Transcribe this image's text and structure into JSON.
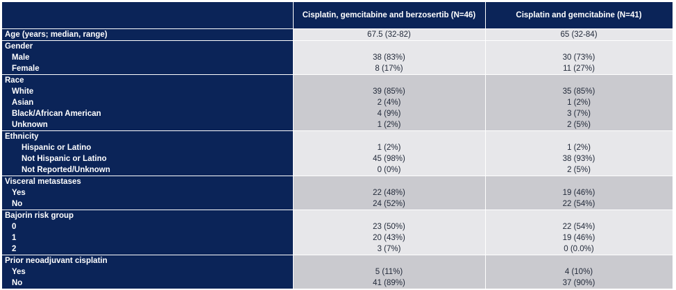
{
  "header": {
    "col0": "",
    "col1": "Cisplatin, gemcitabine and berzosertib (N=46)",
    "col2": "Cisplatin and gemcitabine (N=41)"
  },
  "groups": [
    {
      "shade": "light",
      "rows": [
        {
          "label": "Age (years; median, range)",
          "indent": 0,
          "a": "67.5 (32-82)",
          "b": "65 (32-84)"
        }
      ]
    },
    {
      "shade": "light",
      "rows": [
        {
          "label": "Gender",
          "indent": 0,
          "a": "",
          "b": ""
        },
        {
          "label": "Male",
          "indent": 1,
          "a": "38 (83%)",
          "b": "30 (73%)"
        },
        {
          "label": "Female",
          "indent": 1,
          "a": "8 (17%)",
          "b": "11 (27%)"
        }
      ]
    },
    {
      "shade": "dark",
      "rows": [
        {
          "label": "Race",
          "indent": 0,
          "a": "",
          "b": ""
        },
        {
          "label": "White",
          "indent": 1,
          "a": "39 (85%)",
          "b": "35 (85%)"
        },
        {
          "label": "Asian",
          "indent": 1,
          "a": "2 (4%)",
          "b": "1 (2%)"
        },
        {
          "label": "Black/African American",
          "indent": 1,
          "a": "4 (9%)",
          "b": "3 (7%)"
        },
        {
          "label": "Unknown",
          "indent": 1,
          "a": "1 (2%)",
          "b": "2 (5%)"
        }
      ]
    },
    {
      "shade": "light",
      "rows": [
        {
          "label": "Ethnicity",
          "indent": 0,
          "a": "",
          "b": ""
        },
        {
          "label": "Hispanic or Latino",
          "indent": 2,
          "a": "1 (2%)",
          "b": "1 (2%)"
        },
        {
          "label": "Not Hispanic or Latino",
          "indent": 2,
          "a": "45 (98%)",
          "b": "38 (93%)"
        },
        {
          "label": "Not Reported/Unknown",
          "indent": 2,
          "a": "0 (0%)",
          "b": "2 (5%)"
        }
      ]
    },
    {
      "shade": "dark",
      "rows": [
        {
          "label": "Visceral metastases",
          "indent": 0,
          "a": "",
          "b": ""
        },
        {
          "label": "Yes",
          "indent": 1,
          "a": "22 (48%)",
          "b": "19 (46%)"
        },
        {
          "label": "No",
          "indent": 1,
          "a": "24 (52%)",
          "b": "22 (54%)"
        }
      ]
    },
    {
      "shade": "light",
      "rows": [
        {
          "label": "Bajorin risk group",
          "indent": 0,
          "a": "",
          "b": ""
        },
        {
          "label": "0",
          "indent": 1,
          "a": "23 (50%)",
          "b": "22 (54%)"
        },
        {
          "label": "1",
          "indent": 1,
          "a": "20 (43%)",
          "b": "19 (46%)"
        },
        {
          "label": "2",
          "indent": 1,
          "a": "3 (7%)",
          "b": "0 (0.0%)"
        }
      ]
    },
    {
      "shade": "dark",
      "rows": [
        {
          "label": "Prior neoadjuvant cisplatin",
          "indent": 0,
          "a": "",
          "b": ""
        },
        {
          "label": "Yes",
          "indent": 1,
          "a": "5 (11%)",
          "b": "4 (10%)"
        },
        {
          "label": "No",
          "indent": 1,
          "a": "41 (89%)",
          "b": "37 (90%)"
        }
      ]
    }
  ]
}
